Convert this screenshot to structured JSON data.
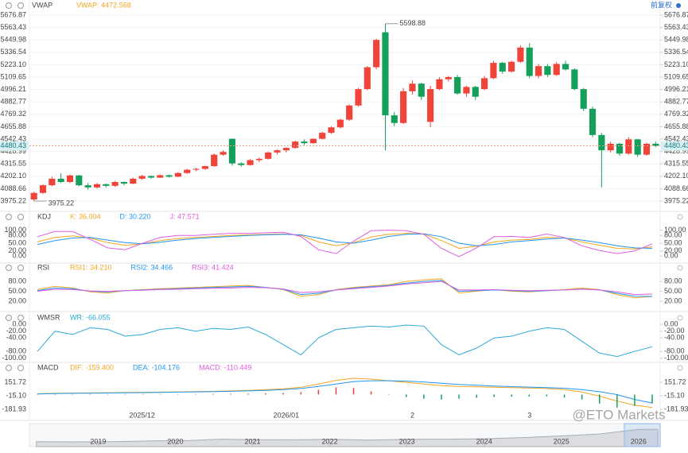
{
  "chart_data": [
    {
      "type": "candlestick",
      "title": "VWAP",
      "legend": "VWAP: 4472.568",
      "legend_color": "#f5a623",
      "adjust_label": "前复权",
      "categories": [
        null,
        null,
        null,
        null,
        null,
        null,
        null,
        null,
        null,
        null,
        null,
        null,
        "2025/12",
        null,
        null,
        null,
        null,
        null,
        null,
        null,
        null,
        null,
        null,
        null,
        null,
        null,
        null,
        null,
        "2026/01",
        null,
        null,
        null,
        null,
        null,
        null,
        null,
        null,
        null,
        null,
        null,
        null,
        null,
        "2",
        null,
        null,
        null,
        null,
        null,
        null,
        null,
        null,
        null,
        null,
        null,
        null,
        "3",
        null,
        null,
        null,
        null,
        null,
        null,
        null,
        null,
        null,
        null,
        null,
        null,
        null,
        null
      ],
      "open": [
        3990,
        4050,
        4120,
        4180,
        4150,
        4210,
        4120,
        4100,
        4130,
        4115,
        4150,
        4135,
        4180,
        4205,
        4190,
        4212,
        4198,
        4232,
        4262,
        4270,
        4295,
        4400,
        4545,
        4320,
        4305,
        4350,
        4362,
        4420,
        4440,
        4462,
        4520,
        4505,
        4545,
        4600,
        4650,
        4720,
        4850,
        5000,
        5200,
        5520,
        4760,
        4690,
        4980,
        5050,
        4700,
        5000,
        5090,
        5110,
        4960,
        5020,
        5000,
        5100,
        5240,
        5160,
        5250,
        5380,
        5120,
        5210,
        5130,
        5230,
        5180,
        5000,
        4820,
        4580,
        4440,
        4500,
        4410,
        4540,
        4400,
        4500
      ],
      "high": [
        4060,
        4130,
        4200,
        4230,
        4220,
        4215,
        4140,
        4140,
        4135,
        4160,
        4155,
        4190,
        4215,
        4210,
        4220,
        4218,
        4240,
        4270,
        4280,
        4300,
        4410,
        4440,
        4550,
        4330,
        4360,
        4375,
        4430,
        4450,
        4470,
        4530,
        4540,
        4550,
        4610,
        4660,
        4730,
        4860,
        5010,
        5210,
        5460,
        5598.88,
        4790,
        5010,
        5080,
        5060,
        5030,
        5110,
        5120,
        5130,
        5030,
        5030,
        5120,
        5260,
        5250,
        5260,
        5400,
        5420,
        5230,
        5230,
        5250,
        5260,
        5190,
        5010,
        4840,
        4600,
        4520,
        4510,
        4560,
        4545,
        4510,
        4520
      ],
      "low": [
        3975.22,
        4040,
        4110,
        4140,
        4140,
        4110,
        4080,
        4090,
        4100,
        4105,
        4120,
        4130,
        4170,
        4180,
        4185,
        4190,
        4195,
        4225,
        4250,
        4260,
        4290,
        4390,
        4300,
        4290,
        4300,
        4330,
        4355,
        4400,
        4420,
        4455,
        4490,
        4500,
        4540,
        4590,
        4640,
        4710,
        4840,
        4990,
        5180,
        4440,
        4660,
        4680,
        4950,
        4900,
        4650,
        4990,
        5070,
        4950,
        4930,
        4900,
        4990,
        5090,
        5140,
        5150,
        5240,
        5100,
        5100,
        5110,
        5120,
        5170,
        4990,
        4800,
        4560,
        4100,
        4420,
        4390,
        4400,
        4380,
        4390,
        4470
      ],
      "close": [
        4050,
        4120,
        4180,
        4150,
        4210,
        4120,
        4100,
        4130,
        4115,
        4150,
        4135,
        4180,
        4205,
        4190,
        4212,
        4198,
        4232,
        4262,
        4270,
        4295,
        4400,
        4425,
        4320,
        4305,
        4350,
        4362,
        4420,
        4440,
        4462,
        4520,
        4505,
        4545,
        4600,
        4650,
        4720,
        4850,
        5000,
        5200,
        5450,
        4760,
        4690,
        4980,
        5050,
        4930,
        5000,
        5090,
        5110,
        4960,
        5020,
        4930,
        5100,
        5240,
        5160,
        5250,
        5380,
        5120,
        5210,
        5130,
        5230,
        5180,
        5000,
        4820,
        4580,
        4440,
        4500,
        4410,
        4540,
        4400,
        4500,
        4480.43
      ],
      "up_color": "#f0443a",
      "down_color": "#14a05a",
      "grid": true,
      "ylim": [
        3910,
        5728
      ],
      "yticks": [
        5676.87,
        5563.43,
        5449.98,
        5336.54,
        {
          "value": 5223.1,
          "label": "5223.10"
        },
        5109.65,
        4996.21,
        4882.77,
        4769.32,
        4655.88,
        4542.43,
        4428.99,
        4315.55,
        {
          "value": 4202.1,
          "label": "4202.10"
        },
        4088.66,
        3975.22
      ]
    },
    {
      "type": "line",
      "title": "KDJ",
      "ylim": [
        -5,
        105
      ],
      "yticks": [
        {
          "value": 100,
          "label": "100.00"
        },
        {
          "value": 80,
          "label": "80.00"
        },
        {
          "value": 50,
          "label": "50.00"
        },
        {
          "value": 20,
          "label": "20.00"
        },
        {
          "value": 0,
          "label": "0.00"
        }
      ],
      "series": [
        {
          "name": "K: 36.004",
          "color": "#f5a623",
          "values": [
            55,
            72,
            78,
            70,
            52,
            42,
            48,
            60,
            68,
            72,
            76,
            80,
            82,
            84,
            86,
            80,
            55,
            40,
            52,
            74,
            84,
            88,
            85,
            60,
            30,
            38,
            55,
            62,
            64,
            72,
            70,
            55,
            42,
            30,
            28,
            36.004
          ]
        },
        {
          "name": "D: 30.220",
          "color": "#2196f3",
          "values": [
            45,
            60,
            70,
            72,
            62,
            52,
            48,
            54,
            62,
            68,
            72,
            76,
            80,
            82,
            84,
            82,
            70,
            55,
            50,
            62,
            76,
            84,
            86,
            75,
            50,
            40,
            45,
            55,
            60,
            66,
            70,
            62,
            52,
            40,
            32,
            30.22
          ]
        },
        {
          "name": "J: 47.571",
          "color": "#e05ce0",
          "values": [
            75,
            95,
            95,
            65,
            32,
            25,
            50,
            72,
            80,
            80,
            84,
            88,
            88,
            90,
            92,
            76,
            25,
            10,
            58,
            98,
            100,
            98,
            84,
            30,
            -2,
            32,
            75,
            76,
            72,
            85,
            72,
            40,
            22,
            10,
            20,
            47.571
          ]
        }
      ]
    },
    {
      "type": "line",
      "title": "RSI",
      "ylim": [
        10,
        90
      ],
      "yticks": [
        {
          "value": 80,
          "label": "80.00"
        },
        {
          "value": 50,
          "label": "50.00"
        },
        {
          "value": 20,
          "label": "20.00"
        }
      ],
      "series": [
        {
          "name": "RSI1: 34.210",
          "color": "#f5a623",
          "values": [
            55,
            65,
            60,
            48,
            45,
            52,
            55,
            58,
            60,
            62,
            64,
            66,
            68,
            62,
            55,
            35,
            40,
            55,
            62,
            66,
            70,
            80,
            85,
            88,
            45,
            50,
            55,
            50,
            48,
            52,
            55,
            60,
            55,
            40,
            30,
            34.21
          ]
        },
        {
          "name": "RSI2: 34.466",
          "color": "#2196f3",
          "values": [
            52,
            60,
            58,
            50,
            48,
            52,
            54,
            56,
            58,
            60,
            62,
            63,
            65,
            62,
            56,
            40,
            44,
            54,
            60,
            64,
            68,
            75,
            80,
            83,
            50,
            52,
            54,
            52,
            50,
            52,
            54,
            57,
            54,
            44,
            35,
            34.466
          ]
        },
        {
          "name": "RSI3: 41.424",
          "color": "#e05ce0",
          "values": [
            50,
            56,
            55,
            51,
            50,
            52,
            53,
            55,
            56,
            58,
            59,
            60,
            62,
            61,
            57,
            46,
            48,
            54,
            58,
            62,
            66,
            72,
            76,
            80,
            54,
            54,
            55,
            53,
            52,
            53,
            54,
            56,
            54,
            48,
            40,
            41.424
          ]
        }
      ]
    },
    {
      "type": "line",
      "title": "WMSR",
      "ylim": [
        -110,
        5
      ],
      "yticks": [
        {
          "value": 0,
          "label": "0.00"
        },
        {
          "value": -20,
          "label": "-20.00"
        },
        {
          "value": -40,
          "label": "-40.00"
        },
        {
          "value": -80,
          "label": "-80.00"
        },
        {
          "value": -100,
          "label": "-100.00"
        }
      ],
      "series": [
        {
          "name": "WR: -66.055",
          "color": "#2aa8d8",
          "values": [
            -80,
            -20,
            -30,
            -10,
            -15,
            -35,
            -30,
            -15,
            -10,
            -20,
            -12,
            -15,
            -8,
            -30,
            -60,
            -90,
            -40,
            -15,
            -10,
            -5,
            -8,
            -2,
            -5,
            -60,
            -90,
            -70,
            -40,
            -35,
            -20,
            -10,
            -15,
            -50,
            -85,
            -95,
            -80,
            -66.055
          ]
        }
      ]
    },
    {
      "type": "line",
      "title": "MACD",
      "ylim": [
        -230,
        210
      ],
      "yticks": [
        151.72,
        {
          "value": -15.1,
          "label": "-15.10"
        },
        -181.93
      ],
      "series": [
        {
          "name": "DIF: -159.400",
          "color": "#f5a623",
          "values": [
            10,
            15,
            18,
            20,
            22,
            25,
            28,
            30,
            33,
            36,
            40,
            45,
            52,
            60,
            70,
            90,
            130,
            175,
            200,
            190,
            170,
            150,
            130,
            110,
            100,
            95,
            90,
            85,
            80,
            75,
            60,
            30,
            -20,
            -80,
            -130,
            -159.4
          ]
        },
        {
          "name": "DEA: -104.176",
          "color": "#2196f3",
          "values": [
            8,
            12,
            15,
            17,
            19,
            22,
            24,
            27,
            30,
            33,
            36,
            40,
            46,
            52,
            60,
            75,
            100,
            130,
            160,
            170,
            170,
            165,
            155,
            140,
            125,
            115,
            105,
            98,
            92,
            86,
            78,
            60,
            35,
            0,
            -60,
            -104.176
          ]
        },
        {
          "name": "MACD: -110.449",
          "color": "#e05ce0",
          "style": "bar",
          "up_color": "#f0443a",
          "down_color": "#14a05a",
          "values": [
            4,
            6,
            6,
            6,
            6,
            6,
            8,
            6,
            6,
            6,
            8,
            10,
            12,
            16,
            20,
            30,
            60,
            90,
            80,
            40,
            0,
            -30,
            -50,
            -60,
            -50,
            -40,
            -30,
            -26,
            -24,
            -22,
            -36,
            -60,
            -110,
            -160,
            -140,
            -110.449
          ]
        }
      ]
    },
    {
      "type": "area",
      "watermark": "@ETO Markets",
      "color": "#c9ccd1",
      "x": [
        2018.2,
        2018.7,
        2019.2,
        2019.7,
        2020.2,
        2020.6,
        2021,
        2021.5,
        2022,
        2022.5,
        2023,
        2023.5,
        2024,
        2024.5,
        2025,
        2025.5,
        2026,
        2026.25
      ],
      "values": [
        1300,
        1250,
        1300,
        1500,
        1600,
        1950,
        1800,
        1780,
        1900,
        1720,
        1900,
        1950,
        2050,
        2350,
        2800,
        3300,
        4500,
        4480
      ],
      "xlim": [
        2018.11,
        2026.28
      ],
      "ylim": [
        0,
        6000
      ],
      "xticks": [
        2019,
        2020,
        2021,
        2022,
        2023,
        2024,
        2025,
        2026
      ]
    }
  ]
}
